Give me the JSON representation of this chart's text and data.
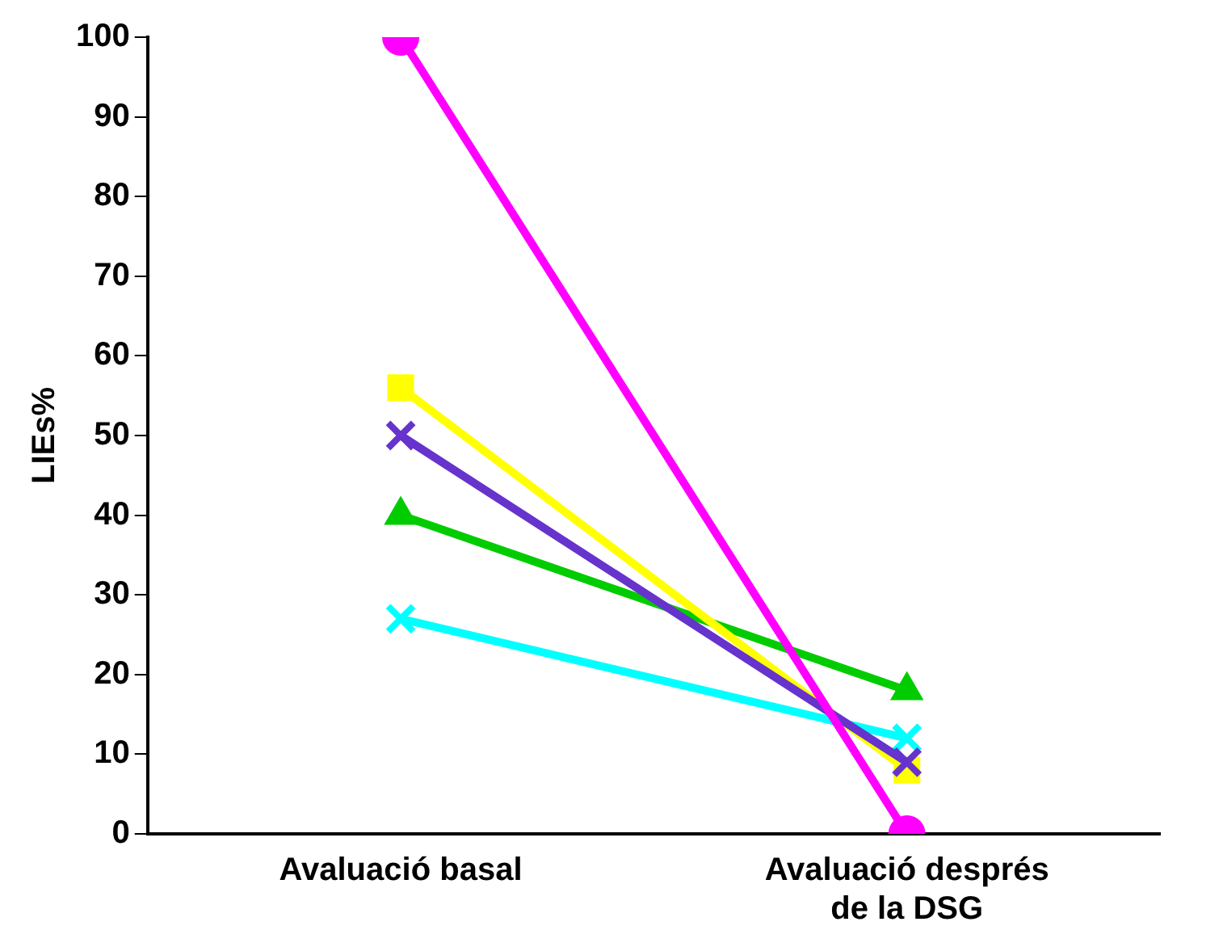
{
  "chart_data": {
    "type": "line",
    "ylabel": "LIEs%",
    "categories": [
      "Avaluació basal",
      "Avaluació després de la DSG"
    ],
    "series": [
      {
        "color": "#ff00ff",
        "values": [
          100,
          0
        ],
        "marker": "circle"
      },
      {
        "color": "#6633cc",
        "values": [
          50,
          9
        ],
        "marker": "cross"
      },
      {
        "color": "#ffff00",
        "values": [
          56,
          8
        ],
        "marker": "square"
      },
      {
        "color": "#00cc00",
        "values": [
          40,
          18
        ],
        "marker": "triangle"
      },
      {
        "color": "#00ffff",
        "values": [
          27,
          12
        ],
        "marker": "cross"
      }
    ],
    "ylim": [
      0,
      100
    ],
    "yticks": [
      0,
      10,
      20,
      30,
      40,
      50,
      60,
      70,
      80,
      90,
      100
    ],
    "grid": false,
    "legend": false
  }
}
